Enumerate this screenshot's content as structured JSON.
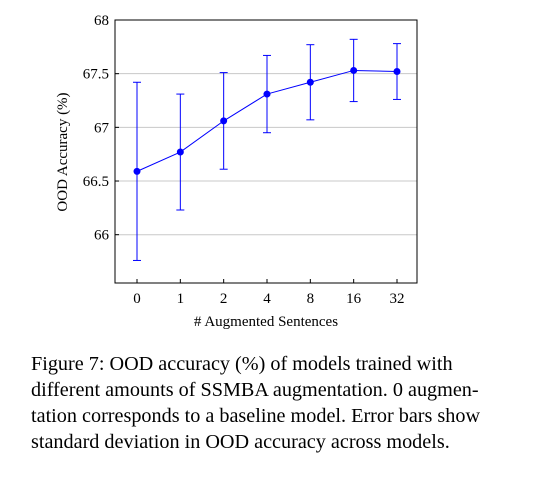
{
  "chart_data": {
    "type": "line",
    "xlabel": "# Augmented Sentences",
    "ylabel": "OOD Accuracy (%)",
    "categories": [
      "0",
      "1",
      "2",
      "4",
      "8",
      "16",
      "32"
    ],
    "series": [
      {
        "values": [
          66.59,
          66.77,
          67.06,
          67.31,
          67.42,
          67.53,
          67.52
        ],
        "error": [
          0.83,
          0.54,
          0.45,
          0.36,
          0.35,
          0.29,
          0.26
        ],
        "color": "#0000ff"
      }
    ],
    "ylim": [
      65.55,
      68.0
    ],
    "yticks": [
      "66",
      "66.5",
      "67",
      "67.5",
      "68"
    ],
    "grid": "horizontal"
  },
  "caption": {
    "lines": [
      "Figure 7:  OOD accuracy (%) of models trained with",
      "different amounts of SSMBA augmentation. 0 augmen-",
      "tation corresponds to a baseline model. Error bars show",
      "standard deviation in OOD accuracy across models."
    ]
  }
}
